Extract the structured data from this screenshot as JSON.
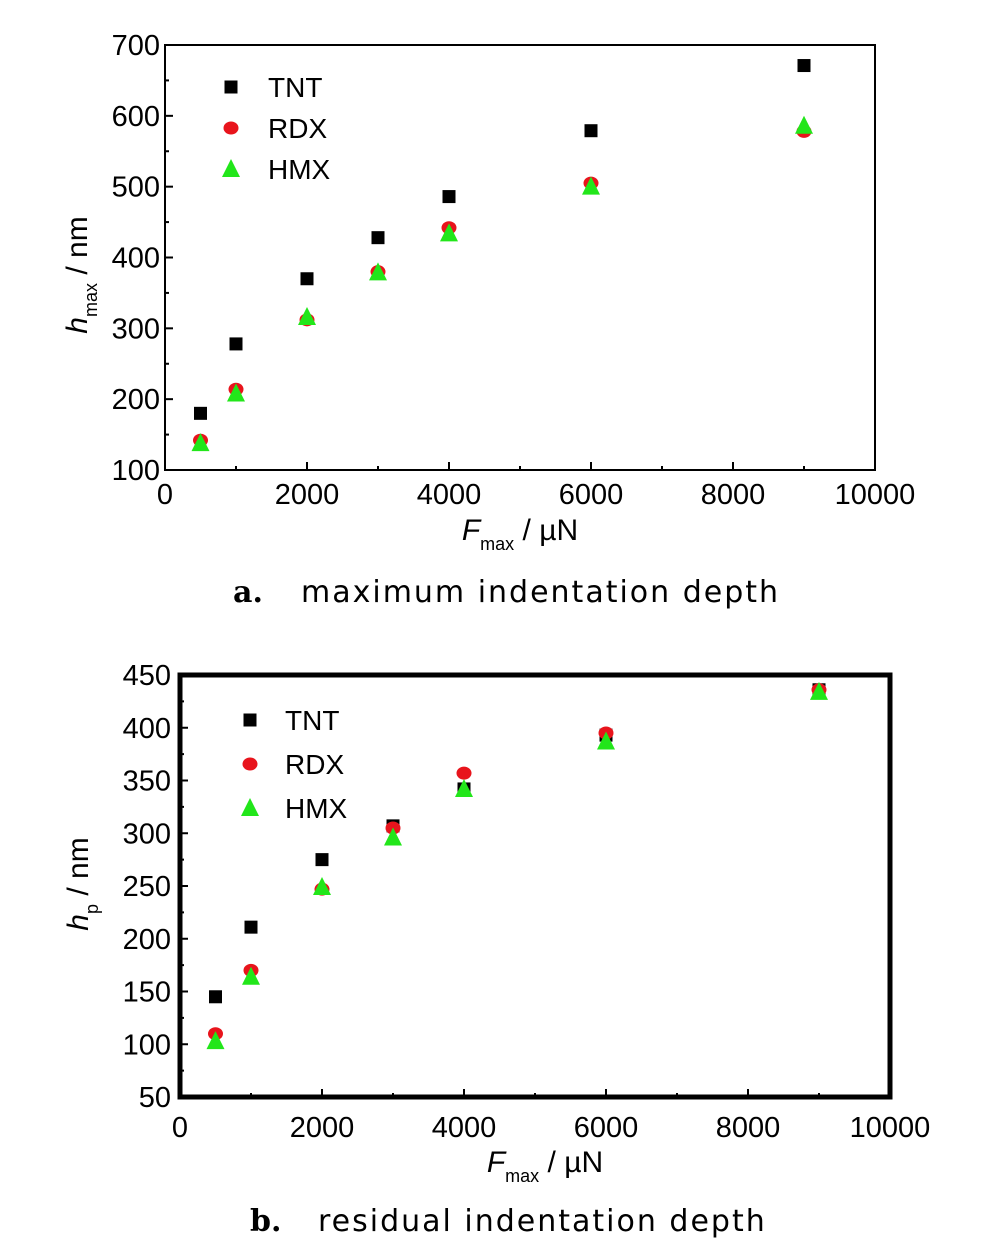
{
  "chart_data": [
    {
      "type": "scatter",
      "caption_letter": "a.",
      "caption_text": "maximum indentation depth",
      "ylabel_main": "h",
      "ylabel_sub": "max",
      "ylabel_unit": " / nm",
      "xlabel_main": "F",
      "xlabel_sub": "max",
      "xlabel_unit": " / µN",
      "xlim": [
        0,
        10000
      ],
      "ylim": [
        100,
        700
      ],
      "xticks": [
        0,
        2000,
        4000,
        6000,
        8000,
        10000
      ],
      "yticks": [
        100,
        200,
        300,
        400,
        500,
        600,
        700
      ],
      "x": [
        500,
        1000,
        2000,
        3000,
        4000,
        6000,
        9000
      ],
      "series": [
        {
          "name": "TNT",
          "marker": "square",
          "color": "#000000",
          "values": [
            180,
            278,
            370,
            428,
            486,
            579,
            671
          ]
        },
        {
          "name": "RDX",
          "marker": "circle",
          "color": "#e8141c",
          "values": [
            142,
            214,
            312,
            380,
            442,
            505,
            578
          ]
        },
        {
          "name": "HMX",
          "marker": "triangle",
          "color": "#22e61a",
          "values": [
            138,
            208,
            316,
            379,
            434,
            500,
            586
          ]
        }
      ],
      "legend_position": "top-left",
      "grid": false
    },
    {
      "type": "scatter",
      "caption_letter": "b.",
      "caption_text": "residual indentation depth",
      "ylabel_main": "h",
      "ylabel_sub": "p",
      "ylabel_unit": " / nm",
      "xlabel_main": "F",
      "xlabel_sub": "max",
      "xlabel_unit": " / µN",
      "xlim": [
        0,
        10000
      ],
      "ylim": [
        50,
        450
      ],
      "xticks": [
        0,
        2000,
        4000,
        6000,
        8000,
        10000
      ],
      "yticks": [
        50,
        100,
        150,
        200,
        250,
        300,
        350,
        400,
        450
      ],
      "x": [
        500,
        1000,
        2000,
        3000,
        4000,
        6000,
        9000
      ],
      "series": [
        {
          "name": "TNT",
          "marker": "square",
          "color": "#000000",
          "values": [
            145,
            211,
            275,
            307,
            342,
            393,
            436
          ]
        },
        {
          "name": "RDX",
          "marker": "circle",
          "color": "#e8141c",
          "values": [
            110,
            170,
            247,
            305,
            357,
            395,
            436
          ]
        },
        {
          "name": "HMX",
          "marker": "triangle",
          "color": "#22e61a",
          "values": [
            103,
            164,
            249,
            296,
            342,
            387,
            434
          ]
        }
      ],
      "legend_position": "top-left",
      "grid": false
    }
  ]
}
